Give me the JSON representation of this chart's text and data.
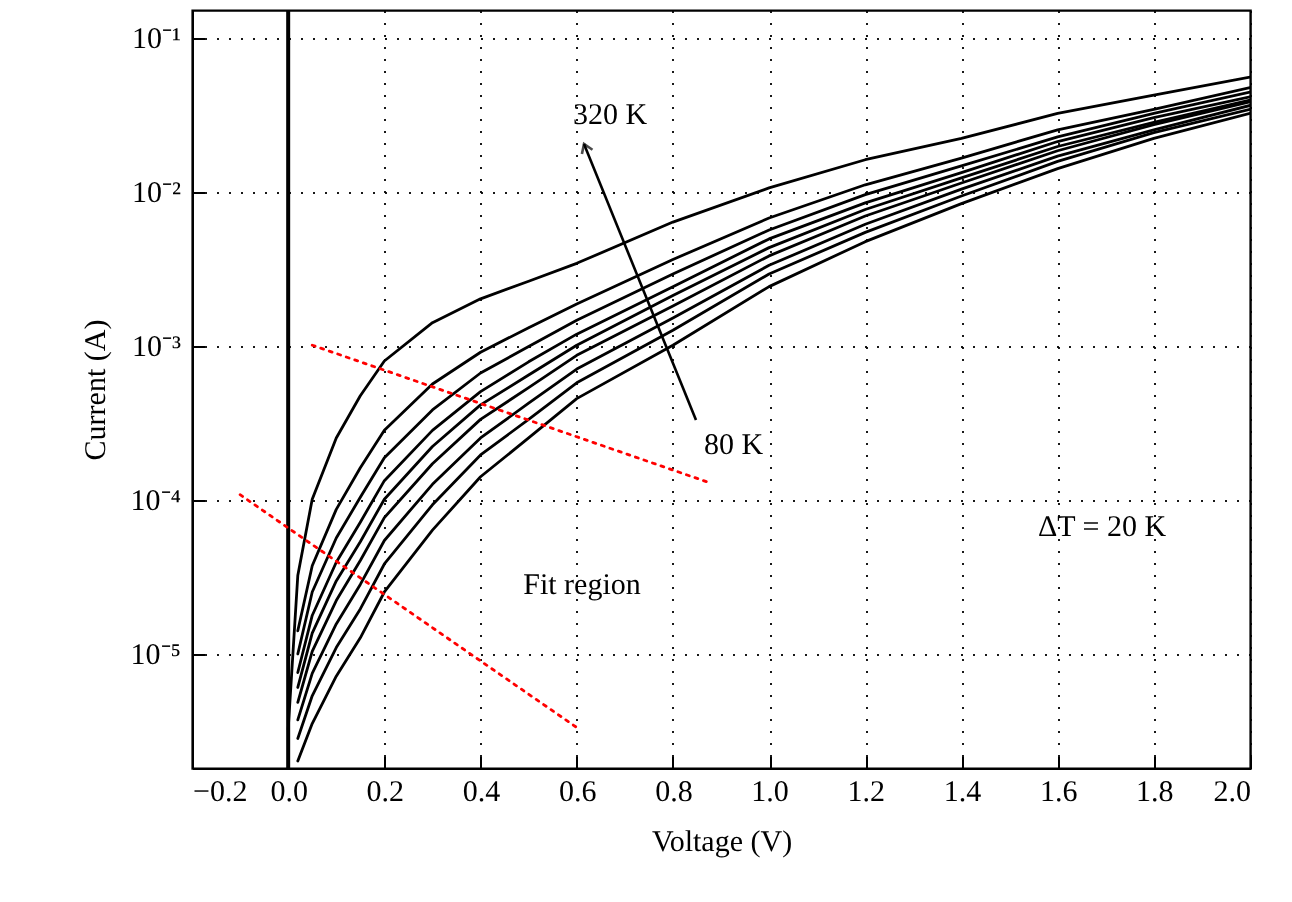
{
  "chart_data": {
    "type": "line",
    "xlabel": "Voltage (V)",
    "ylabel": "Current (A)",
    "x": [
      0.02,
      0.05,
      0.1,
      0.15,
      0.2,
      0.3,
      0.4,
      0.5,
      0.6,
      0.8,
      1.0,
      1.2,
      1.4,
      1.6,
      1.8,
      2.0
    ],
    "series": [
      {
        "color": "#000000",
        "x": [
          0.0,
          0.02,
          0.05,
          0.1,
          0.15,
          0.2,
          0.3,
          0.4,
          0.5,
          0.6,
          0.8,
          1.0,
          1.2,
          1.4,
          1.6,
          1.8,
          2.0
        ],
        "values": [
          3.2e-06,
          3.2e-05,
          0.0001,
          0.00025,
          0.00047,
          0.00079,
          0.0014,
          0.002,
          0.0026,
          0.0034,
          0.0063,
          0.0105,
          0.016,
          0.022,
          0.032,
          0.042,
          0.055
        ]
      },
      {
        "color": "#000000",
        "values": [
          1.4e-05,
          3.7e-05,
          8.6e-05,
          0.00016,
          0.00028,
          0.00056,
          0.0009,
          0.0013,
          0.00185,
          0.0036,
          0.0067,
          0.011,
          0.0164,
          0.025,
          0.034,
          0.047
        ]
      },
      {
        "color": "#000000",
        "values": [
          9.9e-06,
          2.5e-05,
          5.6e-05,
          0.000103,
          0.000186,
          0.00038,
          0.00066,
          0.00098,
          0.00145,
          0.0029,
          0.0056,
          0.0095,
          0.0146,
          0.0225,
          0.032,
          0.044
        ]
      },
      {
        "color": "#000000",
        "values": [
          7.5e-06,
          1.76e-05,
          3.9e-05,
          7.1e-05,
          0.000132,
          0.00028,
          0.0005,
          0.00078,
          0.00118,
          0.0024,
          0.0049,
          0.0084,
          0.0132,
          0.021,
          0.03,
          0.041
        ]
      },
      {
        "color": "#000000",
        "values": [
          6e-06,
          1.35e-05,
          2.95e-05,
          5.3e-05,
          0.0001,
          0.00022,
          0.00041,
          0.00064,
          0.001,
          0.0021,
          0.0043,
          0.0076,
          0.0122,
          0.0195,
          0.028,
          0.039
        ]
      },
      {
        "color": "#000000",
        "values": [
          4.8e-06,
          1.03e-05,
          2.2e-05,
          4e-05,
          7.6e-05,
          0.00017,
          0.00033,
          0.00053,
          0.00086,
          0.0018,
          0.0038,
          0.0069,
          0.0113,
          0.0183,
          0.027,
          0.038
        ]
      },
      {
        "color": "#000000",
        "values": [
          3.7e-06,
          7.4e-06,
          1.55e-05,
          2.8e-05,
          5.4e-05,
          0.000125,
          0.00025,
          0.00042,
          0.0007,
          0.0015,
          0.0033,
          0.0061,
          0.0103,
          0.0169,
          0.025,
          0.036
        ]
      },
      {
        "color": "#000000",
        "values": [
          2.8e-06,
          5.3e-06,
          1.09e-05,
          1.94e-05,
          3.8e-05,
          9.2e-05,
          0.000194,
          0.00033,
          0.00057,
          0.00125,
          0.0029,
          0.0054,
          0.0093,
          0.0156,
          0.024,
          0.034
        ]
      },
      {
        "color": "#000000",
        "values": [
          2e-06,
          3.5e-06,
          7.1e-06,
          1.26e-05,
          2.5e-05,
          6.3e-05,
          0.00014,
          0.00025,
          0.00045,
          0.001,
          0.0024,
          0.0047,
          0.0083,
          0.014,
          0.022,
          0.032
        ]
      },
      {
        "type": "line",
        "color": "#ff0000",
        "line_style": "dotted",
        "x": [
          0.05,
          0.87
        ],
        "values": [
          0.001,
          0.00013
        ]
      },
      {
        "type": "line",
        "color": "#ff0000",
        "line_style": "dotted",
        "x": [
          -0.1,
          0.6
        ],
        "values": [
          0.000107,
          3.3e-06
        ]
      }
    ],
    "xlim": [
      -0.2,
      2.0
    ],
    "ylim": [
      1.8e-06,
      0.15
    ],
    "xticks": [
      {
        "value": -0.2,
        "label": "−0.2"
      },
      {
        "value": 0,
        "label": "0.0"
      },
      0.2,
      0.4,
      0.6,
      0.8,
      {
        "value": 1,
        "label": "1.0"
      },
      1.2,
      1.4,
      1.6,
      1.8,
      {
        "value": 2,
        "label": "2.0"
      }
    ],
    "yticks": [
      {
        "value": 1e-05,
        "label": "10⁻⁵"
      },
      {
        "value": 0.0001,
        "label": "10⁻⁴"
      },
      {
        "value": 0.001,
        "label": "10⁻³"
      },
      {
        "value": 0.01,
        "label": "10⁻²"
      },
      {
        "value": 0.1,
        "label": "10⁻¹"
      }
    ],
    "log": "y",
    "grid": true,
    "marker": "none",
    "line_style": "solid",
    "ref_lines": [
      {
        "axis": "x",
        "value": 0,
        "color": "#000000"
      }
    ],
    "annotations": [
      "320 K",
      "80 K",
      "ΔT = 20 K",
      "Fit region"
    ]
  }
}
